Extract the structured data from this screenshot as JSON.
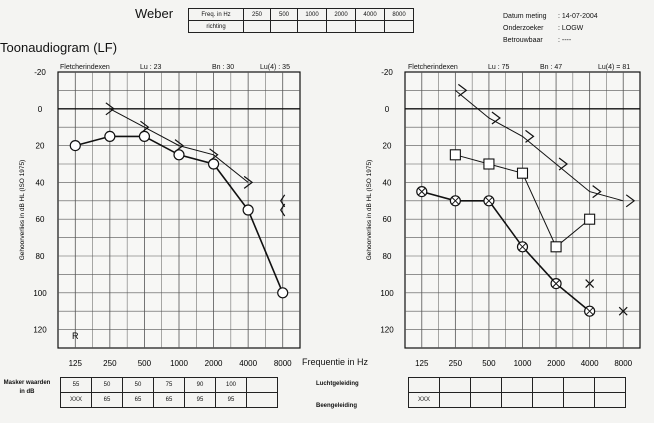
{
  "header": {
    "weber_label": "Weber",
    "weber_table": {
      "row_header": [
        "Freq. in Hz",
        "richting"
      ],
      "frequencies": [
        "250",
        "500",
        "1000",
        "2000",
        "4000",
        "8000"
      ]
    },
    "title": "Toonaudiogram (LF)",
    "info": [
      {
        "label": "Datum meting",
        "value": ": 14-07-2004"
      },
      {
        "label": "Onderzoeker",
        "value": ": LOGW"
      },
      {
        "label": "Betrouwbaar",
        "value": ": ----"
      }
    ]
  },
  "left_panel": {
    "fletcher": {
      "label": "Fletcherindexen",
      "lu": "Lu : 23",
      "bn": "Bn : 30",
      "lu4": "Lu(4) : 35"
    },
    "ylabel": "Gehoorverlies in dB HL (ISO 1975)"
  },
  "right_panel": {
    "fletcher": {
      "label": "Fletcherindexen",
      "lu": "Lu : 75",
      "bn": "Bn : 47",
      "lu4": "Lu(4) = 81"
    },
    "ylabel": "Gehoorverlies in dB HL (ISO 1975)"
  },
  "freq_axis_label": "Frequentie in Hz",
  "bottom": {
    "left_label": "Masker waarden in dB",
    "left_rows": [
      [
        "55",
        "50",
        "50",
        "75",
        "90",
        "100",
        ""
      ],
      [
        "XXX",
        "65",
        "65",
        "65",
        "95",
        "95",
        ""
      ]
    ],
    "right_labels": [
      "Luchtgeleiding",
      "Beengeleiding"
    ],
    "right_rows": [
      [
        "",
        "",
        "",
        "",
        "",
        "",
        ""
      ],
      [
        "XXX",
        "",
        "",
        "",
        "",
        "",
        ""
      ]
    ]
  },
  "chart_data": [
    {
      "type": "line",
      "title": "",
      "xlabel": "Frequentie in Hz",
      "ylabel": "Gehoorverlies in dB HL (ISO 1975)",
      "x_ticks": [
        "125",
        "250",
        "500",
        "1000",
        "2000",
        "4000",
        "8000"
      ],
      "y_ticks": [
        -20,
        0,
        20,
        40,
        60,
        80,
        100,
        120
      ],
      "ylim": [
        -20,
        130
      ],
      "grid": true,
      "series": [
        {
          "marker": "circle",
          "x": [
            "125",
            "250",
            "500",
            "1000",
            "2000",
            "4000",
            "8000"
          ],
          "values": [
            20,
            15,
            15,
            25,
            30,
            55,
            100
          ]
        },
        {
          "marker": "triangle",
          "x": [
            "250",
            "500",
            "1000",
            "2000",
            "4000"
          ],
          "values": [
            0,
            10,
            20,
            25,
            40
          ]
        },
        {
          "marker": "bracket",
          "x": [
            "8000"
          ],
          "values": [
            50
          ]
        },
        {
          "marker": "bracket",
          "x": [
            "8000"
          ],
          "values": [
            55
          ]
        }
      ],
      "annotations": [
        "R"
      ]
    },
    {
      "type": "line",
      "title": "",
      "xlabel": "Frequentie in Hz",
      "ylabel": "Gehoorverlies in dB HL (ISO 1975)",
      "x_ticks": [
        "125",
        "250",
        "500",
        "1000",
        "2000",
        "4000",
        "8000"
      ],
      "y_ticks": [
        -20,
        0,
        20,
        40,
        60,
        80,
        100,
        120
      ],
      "ylim": [
        -20,
        130
      ],
      "grid": true,
      "series": [
        {
          "marker": "cross",
          "x": [
            "125",
            "250",
            "500",
            "1000",
            "2000",
            "4000"
          ],
          "values": [
            45,
            50,
            50,
            75,
            95,
            110
          ]
        },
        {
          "marker": "square",
          "x": [
            "250",
            "500",
            "1000",
            "2000",
            "4000"
          ],
          "values": [
            25,
            30,
            35,
            75,
            60
          ]
        },
        {
          "marker": "triangle",
          "x": [
            "250",
            "500",
            "1000",
            "2000",
            "4000",
            "8000"
          ],
          "values": [
            -10,
            5,
            15,
            30,
            45,
            50
          ]
        },
        {
          "marker": "x",
          "x": [
            "4000",
            "8000"
          ],
          "values": [
            95,
            110
          ]
        }
      ]
    }
  ]
}
